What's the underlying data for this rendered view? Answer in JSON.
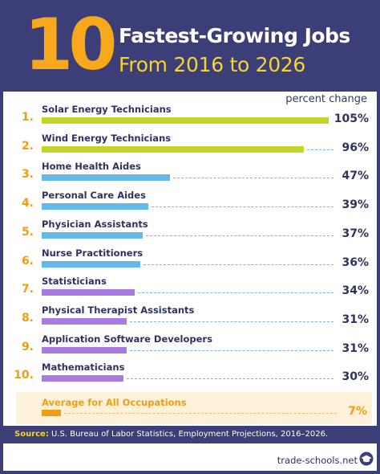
{
  "header": {
    "number": "10",
    "title_line1": "Fastest-Growing Jobs",
    "title_line2": "From 2016 to 2026"
  },
  "unit_label": "percent change",
  "chart_data": {
    "type": "bar",
    "title": "10 Fastest-Growing Jobs From 2016 to 2026",
    "xlabel": "",
    "ylabel": "percent change",
    "xlim": [
      0,
      105
    ],
    "categories": [
      "Solar Energy Technicians",
      "Wind Energy Technicians",
      "Home Health Aides",
      "Personal Care Aides",
      "Physician Assistants",
      "Nurse Practitioners",
      "Statisticians",
      "Physical Therapist Assistants",
      "Application Software Developers",
      "Mathematicians"
    ],
    "ranks": [
      "1.",
      "2.",
      "3.",
      "4.",
      "5.",
      "6.",
      "7.",
      "8.",
      "9.",
      "10."
    ],
    "values": [
      105,
      96,
      47,
      39,
      37,
      36,
      34,
      31,
      31,
      30
    ],
    "value_labels": [
      "105%",
      "96%",
      "47%",
      "39%",
      "37%",
      "36%",
      "34%",
      "31%",
      "31%",
      "30%"
    ],
    "colors": [
      "#c5d329",
      "#c5d329",
      "#63b9e8",
      "#63b9e8",
      "#63b9e8",
      "#63b9e8",
      "#a97be0",
      "#a97be0",
      "#a97be0",
      "#a97be0"
    ],
    "average": {
      "label": "Average for All Occupations",
      "value": 7,
      "value_label": "7%",
      "color": "#f39c12"
    }
  },
  "source": {
    "prefix": "Source:",
    "text": "U.S. Bureau of Labor Statistics, Employment Projections, 2016–2026."
  },
  "brand": {
    "name": "trade-schools.net",
    "icon": "graduation-cap-icon"
  }
}
